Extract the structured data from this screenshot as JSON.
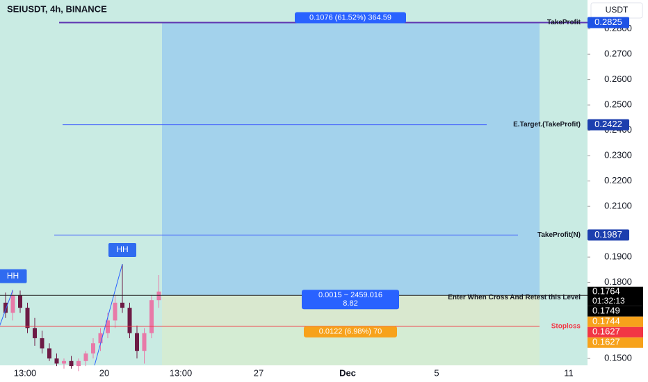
{
  "header": {
    "symbol": "SEIUSDT, 4h, BINANCE",
    "currency": "USDT"
  },
  "chart_data": {
    "type": "candlestick",
    "ylim": [
      0.1473,
      0.2914
    ],
    "yticks": [
      {
        "value": 0.28,
        "label": "0.2800"
      },
      {
        "value": 0.27,
        "label": "0.2700"
      },
      {
        "value": 0.26,
        "label": "0.2600"
      },
      {
        "value": 0.25,
        "label": "0.2500"
      },
      {
        "value": 0.24,
        "label": "0.2400"
      },
      {
        "value": 0.23,
        "label": "0.2300"
      },
      {
        "value": 0.22,
        "label": "0.2200"
      },
      {
        "value": 0.21,
        "label": "0.2100"
      },
      {
        "value": 0.19,
        "label": "0.1900"
      },
      {
        "value": 0.18,
        "label": "0.1800"
      },
      {
        "value": 0.15,
        "label": "0.1500"
      }
    ],
    "x_labels": [
      "13:00",
      "20",
      "13:00",
      "27",
      "Dec",
      "5",
      "11"
    ],
    "candles": {
      "open": [
        0.172,
        0.168,
        0.175,
        0.17,
        0.162,
        0.158,
        0.154,
        0.15,
        0.148,
        0.149,
        0.147,
        0.149,
        0.152,
        0.156,
        0.16,
        0.165,
        0.172,
        0.17,
        0.16,
        0.153,
        0.16,
        0.173
      ],
      "high": [
        0.176,
        0.177,
        0.1768,
        0.172,
        0.166,
        0.161,
        0.156,
        0.152,
        0.15,
        0.151,
        0.15,
        0.153,
        0.158,
        0.162,
        0.168,
        0.175,
        0.1873,
        0.172,
        0.163,
        0.162,
        0.175,
        0.1829
      ],
      "low": [
        0.166,
        0.165,
        0.168,
        0.16,
        0.155,
        0.152,
        0.149,
        0.147,
        0.146,
        0.146,
        0.145,
        0.147,
        0.15,
        0.153,
        0.158,
        0.162,
        0.168,
        0.158,
        0.15,
        0.148,
        0.158,
        0.17
      ],
      "close": [
        0.168,
        0.175,
        0.17,
        0.162,
        0.158,
        0.154,
        0.15,
        0.148,
        0.149,
        0.147,
        0.149,
        0.152,
        0.156,
        0.16,
        0.165,
        0.172,
        0.17,
        0.16,
        0.153,
        0.16,
        0.173,
        0.1764
      ]
    },
    "up_color": "#e87aa8",
    "down_color": "#6d1b45",
    "levels": [
      {
        "name": "TakeProfit",
        "value": 0.2825,
        "color": "#5e35b1",
        "badge_color": "#1e53e5"
      },
      {
        "name": "E.Target.(TakeProfit)",
        "value": 0.2422,
        "color": "#3d5afe",
        "badge_color": "#1c3fae"
      },
      {
        "name": "TakeProfit(N)",
        "value": 0.1987,
        "color": "#3d5afe",
        "badge_color": "#1c3fae"
      },
      {
        "name": "Enter When Cross And Retest this Level",
        "value": 0.1749,
        "color": "#222222"
      },
      {
        "name": "Stoploss",
        "value": 0.1627,
        "color": "#f23645"
      }
    ],
    "price_badges": [
      {
        "value": 0.1764,
        "label": "0.1764",
        "countdown": "01:32:13",
        "color": "#000000"
      },
      {
        "value": 0.1749,
        "label": "0.1749",
        "color": "#000000"
      },
      {
        "value": 0.1744,
        "label": "0.1744",
        "color": "#f7a21b"
      },
      {
        "value": 0.1627,
        "label": "0.1627",
        "color": "#f23645"
      },
      {
        "value": 0.1627,
        "label": "0.1627",
        "color": "#f7a21b"
      }
    ],
    "position": {
      "entry": 0.1749,
      "target": 0.2825,
      "stop": 0.1627,
      "target_label": "0.1076 (61.52%) 364.59",
      "entry_label": [
        "0.0015 ~ 2459.016",
        "8.82"
      ],
      "stop_label": "0.0122 (6.98%) 70"
    },
    "annotations": [
      "HH",
      "HH"
    ]
  }
}
